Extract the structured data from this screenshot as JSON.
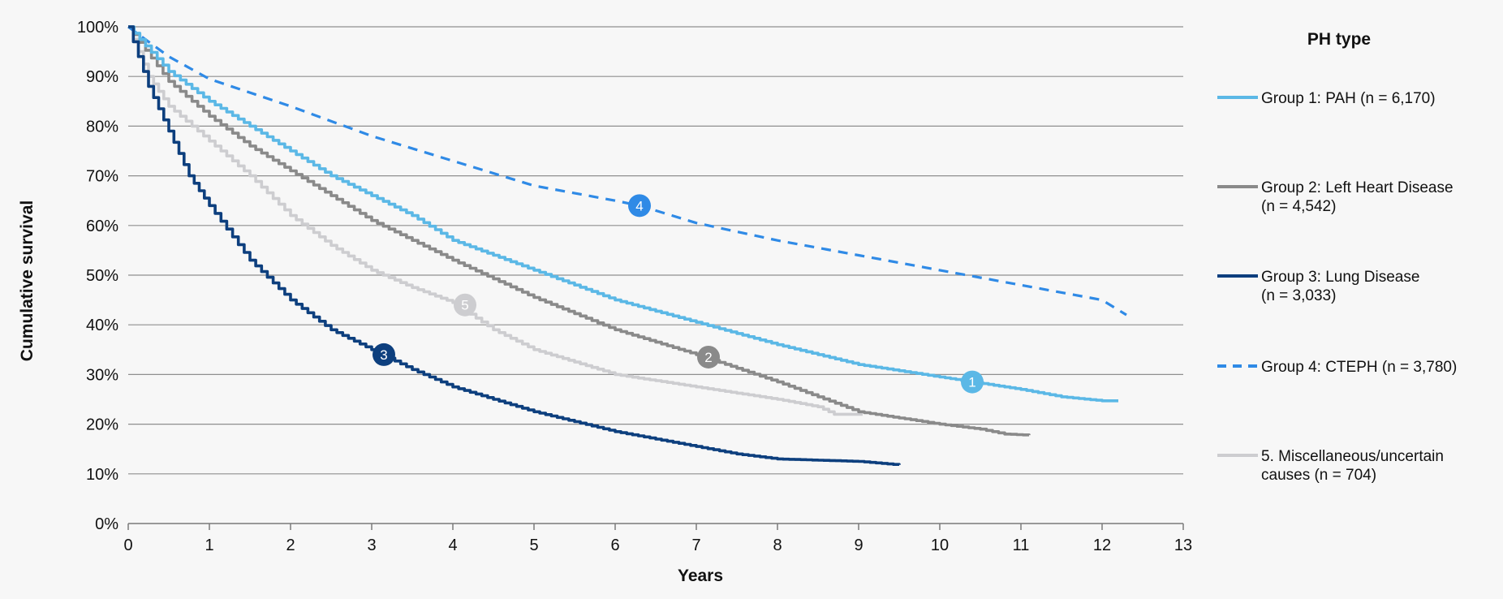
{
  "chart_data": {
    "type": "line",
    "title": "",
    "xlabel": "Years",
    "ylabel": "Cumulative survival",
    "xlim": [
      0,
      13
    ],
    "ylim": [
      0,
      100
    ],
    "x_ticks": [
      "0",
      "1",
      "2",
      "3",
      "4",
      "5",
      "6",
      "7",
      "8",
      "9",
      "10",
      "11",
      "12",
      "13"
    ],
    "y_ticks": [
      "0%",
      "10%",
      "20%",
      "30%",
      "40%",
      "50%",
      "60%",
      "70%",
      "80%",
      "90%",
      "100%"
    ],
    "grid": "horizontal",
    "legend": {
      "title": "PH type",
      "placement": "right",
      "entries": [
        {
          "lines": [
            "Group 1: PAH (n = 6,170)"
          ]
        },
        {
          "lines": [
            "Group 2: Left Heart Disease",
            "(n = 4,542)"
          ]
        },
        {
          "lines": [
            "Group 3: Lung Disease",
            "(n = 3,033)"
          ]
        },
        {
          "lines": [
            "Group 4: CTEPH (n = 3,780)"
          ]
        },
        {
          "lines": [
            "5. Miscellaneous/uncertain",
            "causes (n = 704)"
          ]
        }
      ]
    },
    "series": [
      {
        "marker": "1",
        "marker_at": [
          10.4,
          28.5
        ],
        "color": "#5bb8e6",
        "dashed": false,
        "points": [
          [
            0,
            100
          ],
          [
            0.5,
            91
          ],
          [
            1,
            85
          ],
          [
            1.5,
            80
          ],
          [
            2,
            75
          ],
          [
            2.5,
            70
          ],
          [
            3,
            66
          ],
          [
            3.5,
            62
          ],
          [
            4,
            57
          ],
          [
            5,
            51
          ],
          [
            6,
            45
          ],
          [
            7,
            40.5
          ],
          [
            8,
            36
          ],
          [
            9,
            32
          ],
          [
            10,
            29.5
          ],
          [
            10.4,
            28.5
          ],
          [
            11,
            27
          ],
          [
            11.5,
            25.5
          ],
          [
            12,
            24.7
          ],
          [
            12.2,
            24.7
          ]
        ]
      },
      {
        "marker": "2",
        "marker_at": [
          7.15,
          33.5
        ],
        "color": "#8a8a8a",
        "dashed": false,
        "points": [
          [
            0,
            100
          ],
          [
            0.5,
            89
          ],
          [
            1,
            82
          ],
          [
            1.5,
            76
          ],
          [
            2,
            71
          ],
          [
            2.5,
            66
          ],
          [
            3,
            61
          ],
          [
            3.5,
            57
          ],
          [
            4,
            53
          ],
          [
            5,
            45.5
          ],
          [
            6,
            39
          ],
          [
            7,
            34
          ],
          [
            8,
            28.5
          ],
          [
            9,
            22.5
          ],
          [
            10,
            20
          ],
          [
            10.5,
            19
          ],
          [
            10.8,
            18
          ],
          [
            11.1,
            17.8
          ]
        ]
      },
      {
        "marker": "3",
        "marker_at": [
          3.15,
          34
        ],
        "color": "#0d3f7e",
        "dashed": false,
        "points": [
          [
            0,
            100
          ],
          [
            0.25,
            88
          ],
          [
            0.5,
            79
          ],
          [
            0.75,
            70
          ],
          [
            1,
            64
          ],
          [
            1.5,
            53
          ],
          [
            2,
            45
          ],
          [
            2.5,
            39
          ],
          [
            3,
            35
          ],
          [
            3.5,
            31
          ],
          [
            4,
            27.5
          ],
          [
            5,
            22.5
          ],
          [
            6,
            18.5
          ],
          [
            7,
            15.5
          ],
          [
            7.5,
            14
          ],
          [
            8,
            13
          ],
          [
            9,
            12.5
          ],
          [
            9.5,
            11.8
          ]
        ]
      },
      {
        "marker": "4",
        "marker_at": [
          6.3,
          64
        ],
        "color": "#2f8ae6",
        "dashed": true,
        "points": [
          [
            0,
            100
          ],
          [
            0.5,
            94
          ],
          [
            1,
            89.5
          ],
          [
            2,
            84
          ],
          [
            3,
            78
          ],
          [
            4,
            73
          ],
          [
            5,
            68
          ],
          [
            6,
            65
          ],
          [
            6.3,
            64
          ],
          [
            7,
            60.5
          ],
          [
            8,
            57
          ],
          [
            9,
            54
          ],
          [
            10,
            51
          ],
          [
            11,
            48
          ],
          [
            12,
            45
          ],
          [
            12.3,
            42
          ]
        ]
      },
      {
        "marker": "5",
        "marker_at": [
          4.15,
          44
        ],
        "color": "#cdcdd0",
        "dashed": false,
        "points": [
          [
            0,
            100
          ],
          [
            0.25,
            90
          ],
          [
            0.5,
            84
          ],
          [
            1,
            77
          ],
          [
            1.5,
            70
          ],
          [
            2,
            62
          ],
          [
            2.5,
            56
          ],
          [
            3,
            51
          ],
          [
            3.5,
            47.5
          ],
          [
            4,
            44.5
          ],
          [
            4.5,
            39
          ],
          [
            5,
            35
          ],
          [
            6,
            30
          ],
          [
            7,
            27.5
          ],
          [
            8,
            25
          ],
          [
            8.5,
            23.5
          ],
          [
            8.7,
            22
          ],
          [
            9.05,
            22
          ]
        ]
      }
    ]
  }
}
